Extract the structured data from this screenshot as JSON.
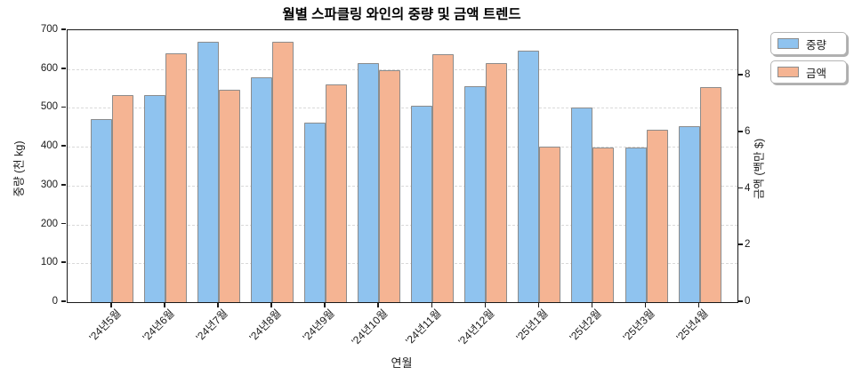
{
  "title": "월별 스파클링 와인의 중량 및 금액 트렌드",
  "legend": {
    "weight": "중량",
    "amount": "금액"
  },
  "colors": {
    "weight_fill": "#8FC3EF",
    "amount_fill": "#F5B493",
    "bar_edge": "#8c8c8c",
    "grid": "#d9d9d9",
    "axis": "#1a1a1a"
  },
  "chart_data": {
    "type": "bar",
    "dual_axis": true,
    "title": "월별 스파클링 와인의 중량 및 금액 트렌드",
    "xlabel": "연월",
    "ylabel_left": "중량 (천 kg)",
    "ylabel_right": "금액 (백만 $)",
    "categories": [
      "'24년5월",
      "'24년6월",
      "'24년7월",
      "'24년8월",
      "'24년9월",
      "'24년10월",
      "'24년11월",
      "'24년12월",
      "'25년1월",
      "'25년2월",
      "'25년3월",
      "'25년4월"
    ],
    "series": [
      {
        "name": "중량",
        "axis": "left",
        "unit": "천 kg",
        "values": [
          471,
          533,
          670,
          578,
          461,
          616,
          505,
          556,
          647,
          501,
          397,
          454
        ]
      },
      {
        "name": "금액",
        "axis": "right",
        "unit": "백만 $",
        "values": [
          7.3,
          8.8,
          7.5,
          9.2,
          7.7,
          8.2,
          8.75,
          8.45,
          5.5,
          5.45,
          6.1,
          7.6
        ]
      }
    ],
    "left_axis": {
      "min": 0,
      "max": 700,
      "ticks": [
        0,
        100,
        200,
        300,
        400,
        500,
        600,
        700
      ]
    },
    "right_axis": {
      "min": 0,
      "max": 9.6,
      "ticks": [
        0,
        2,
        4,
        6,
        8
      ]
    },
    "grid": "horizontal dashed at left-axis ticks",
    "legend_position": "outside top-right, stacked boxes"
  }
}
